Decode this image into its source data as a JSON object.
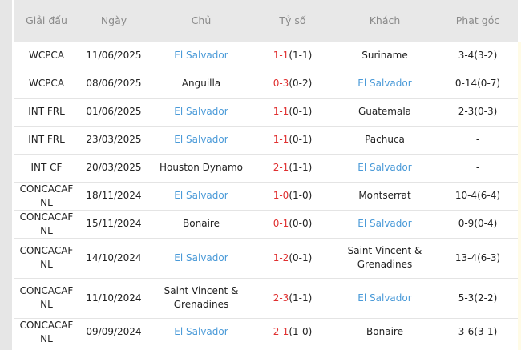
{
  "headers": [
    "Giải đấu",
    "Ngày",
    "Chủ",
    "Tỷ số",
    "Khách",
    "Phạt góc"
  ],
  "highlight_team": "El Salvador",
  "colors": {
    "highlight": "#4a9ad8",
    "score": "#e03030",
    "header_bg": "#e8e8e8"
  },
  "rows": [
    {
      "league": "WCPCA",
      "date": "11/06/2025",
      "home": "El Salvador",
      "ft": "1-1",
      "ht": "(1-1)",
      "away": "Suriname",
      "corners": "3-4(3-2)"
    },
    {
      "league": "WCPCA",
      "date": "08/06/2025",
      "home": "Anguilla",
      "ft": "0-3",
      "ht": "(0-2)",
      "away": "El Salvador",
      "corners": "0-14(0-7)"
    },
    {
      "league": "INT FRL",
      "date": "01/06/2025",
      "home": "El Salvador",
      "ft": "1-1",
      "ht": "(0-1)",
      "away": "Guatemala",
      "corners": "2-3(0-3)"
    },
    {
      "league": "INT FRL",
      "date": "23/03/2025",
      "home": "El Salvador",
      "ft": "1-1",
      "ht": "(0-1)",
      "away": "Pachuca",
      "corners": "-"
    },
    {
      "league": "INT CF",
      "date": "20/03/2025",
      "home": "Houston Dynamo",
      "ft": "2-1",
      "ht": "(1-1)",
      "away": "El Salvador",
      "corners": "-"
    },
    {
      "league": "CONCACAF NL",
      "date": "18/11/2024",
      "home": "El Salvador",
      "ft": "1-0",
      "ht": "(1-0)",
      "away": "Montserrat",
      "corners": "10-4(6-4)"
    },
    {
      "league": "CONCACAF NL",
      "date": "15/11/2024",
      "home": "Bonaire",
      "ft": "0-1",
      "ht": "(0-0)",
      "away": "El Salvador",
      "corners": "0-9(0-4)"
    },
    {
      "league": "CONCACAF NL",
      "date": "14/10/2024",
      "home": "El Salvador",
      "ft": "1-2",
      "ht": "(0-1)",
      "away": "Saint Vincent & Grenadines",
      "corners": "13-4(6-3)"
    },
    {
      "league": "CONCACAF NL",
      "date": "11/10/2024",
      "home": "Saint Vincent & Grenadines",
      "ft": "2-3",
      "ht": "(1-1)",
      "away": "El Salvador",
      "corners": "5-3(2-2)"
    },
    {
      "league": "CONCACAF NL",
      "date": "09/09/2024",
      "home": "El Salvador",
      "ft": "2-1",
      "ht": "(1-0)",
      "away": "Bonaire",
      "corners": "3-6(3-1)"
    }
  ]
}
